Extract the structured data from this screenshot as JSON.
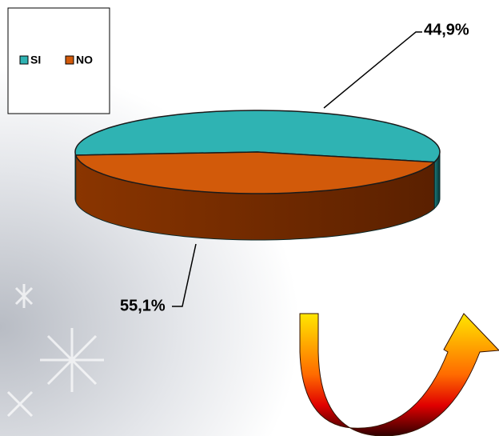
{
  "chart_data": {
    "type": "pie",
    "categories": [
      "SI",
      "NO"
    ],
    "values": [
      55.1,
      44.9
    ],
    "value_labels": [
      "55,1%",
      "44,9%"
    ],
    "colors": [
      "#2fb3b3",
      "#d25a0a"
    ],
    "legend": "top-left"
  }
}
